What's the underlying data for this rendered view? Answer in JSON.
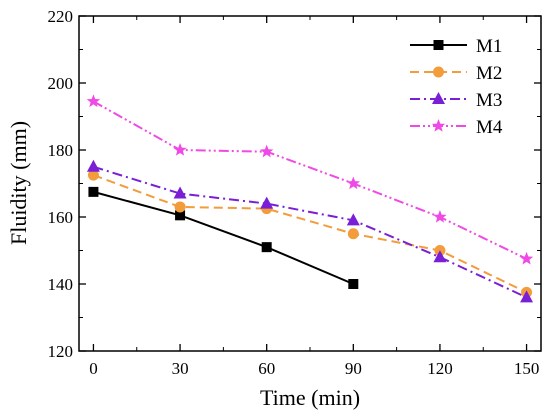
{
  "chart_data": {
    "type": "line",
    "xlabel": "Time (min)",
    "ylabel": "Fluidity (mm)",
    "x_ticks": [
      "0",
      "30",
      "60",
      "90",
      "120",
      "150"
    ],
    "y_ticks": [
      "120",
      "140",
      "160",
      "180",
      "200",
      "220"
    ],
    "xlim": [
      -5,
      155
    ],
    "ylim": [
      120,
      220
    ],
    "grid": false,
    "legend": "top-right",
    "series": [
      {
        "name": "M1",
        "color": "#000000",
        "marker": "square",
        "dash": "solid",
        "x": [
          0,
          30,
          60,
          90
        ],
        "y": [
          167.5,
          160.5,
          151,
          140
        ]
      },
      {
        "name": "M2",
        "color": "#f39c3c",
        "marker": "circle",
        "dash": "dashed",
        "x": [
          0,
          30,
          60,
          90,
          120,
          150
        ],
        "y": [
          172.5,
          163,
          162.5,
          155,
          150,
          137.5
        ]
      },
      {
        "name": "M3",
        "color": "#7a1fd6",
        "marker": "triangle",
        "dash": "dashdot",
        "x": [
          0,
          30,
          60,
          90,
          120,
          150
        ],
        "y": [
          175,
          167,
          164,
          159,
          148,
          136
        ]
      },
      {
        "name": "M4",
        "color": "#f04ae6",
        "marker": "star",
        "dash": "dashdotdot",
        "x": [
          0,
          30,
          60,
          90,
          120,
          150
        ],
        "y": [
          194.5,
          180,
          179.5,
          170,
          160,
          147.5
        ]
      }
    ]
  }
}
